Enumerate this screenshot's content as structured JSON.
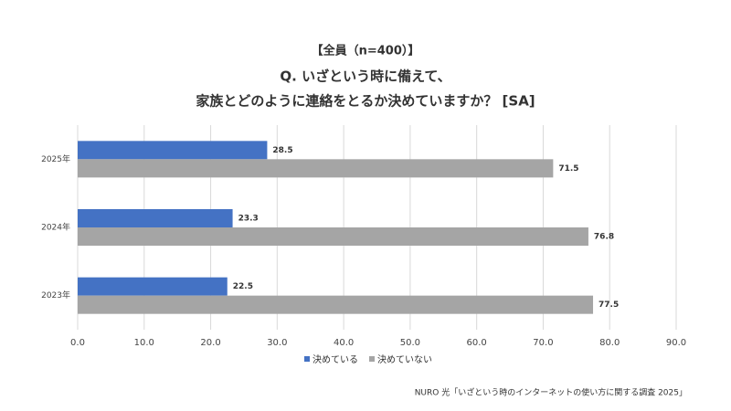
{
  "chart_data": {
    "type": "barh",
    "title": [
      "【全員（n=400）】",
      "Q. いざという時に備えて、",
      "家族とどのように連絡をとるか決めていますか？ [SA]"
    ],
    "categories": [
      "2025年",
      "2024年",
      "2023年"
    ],
    "series": [
      {
        "name": "決めている",
        "color": "#4472c4",
        "values": [
          28.5,
          23.3,
          22.5
        ]
      },
      {
        "name": "決めていない",
        "color": "#a5a5a5",
        "values": [
          71.5,
          76.8,
          77.5
        ]
      }
    ],
    "xlim": [
      0,
      90
    ],
    "xticks": [
      {
        "value": 0,
        "label": "0.0"
      },
      {
        "value": 10,
        "label": "10.0"
      },
      {
        "value": 20,
        "label": "20.0"
      },
      {
        "value": 30,
        "label": "30.0"
      },
      {
        "value": 40,
        "label": "40.0"
      },
      {
        "value": 50,
        "label": "50.0"
      },
      {
        "value": 60,
        "label": "60.0"
      },
      {
        "value": 70,
        "label": "70.0"
      },
      {
        "value": 80,
        "label": "80.0"
      },
      {
        "value": 90,
        "label": "90.0"
      }
    ],
    "grid": true,
    "legend": "bottom",
    "source": "NURO 光「いざという時のインターネットの使い方に関する調査 2025」"
  }
}
